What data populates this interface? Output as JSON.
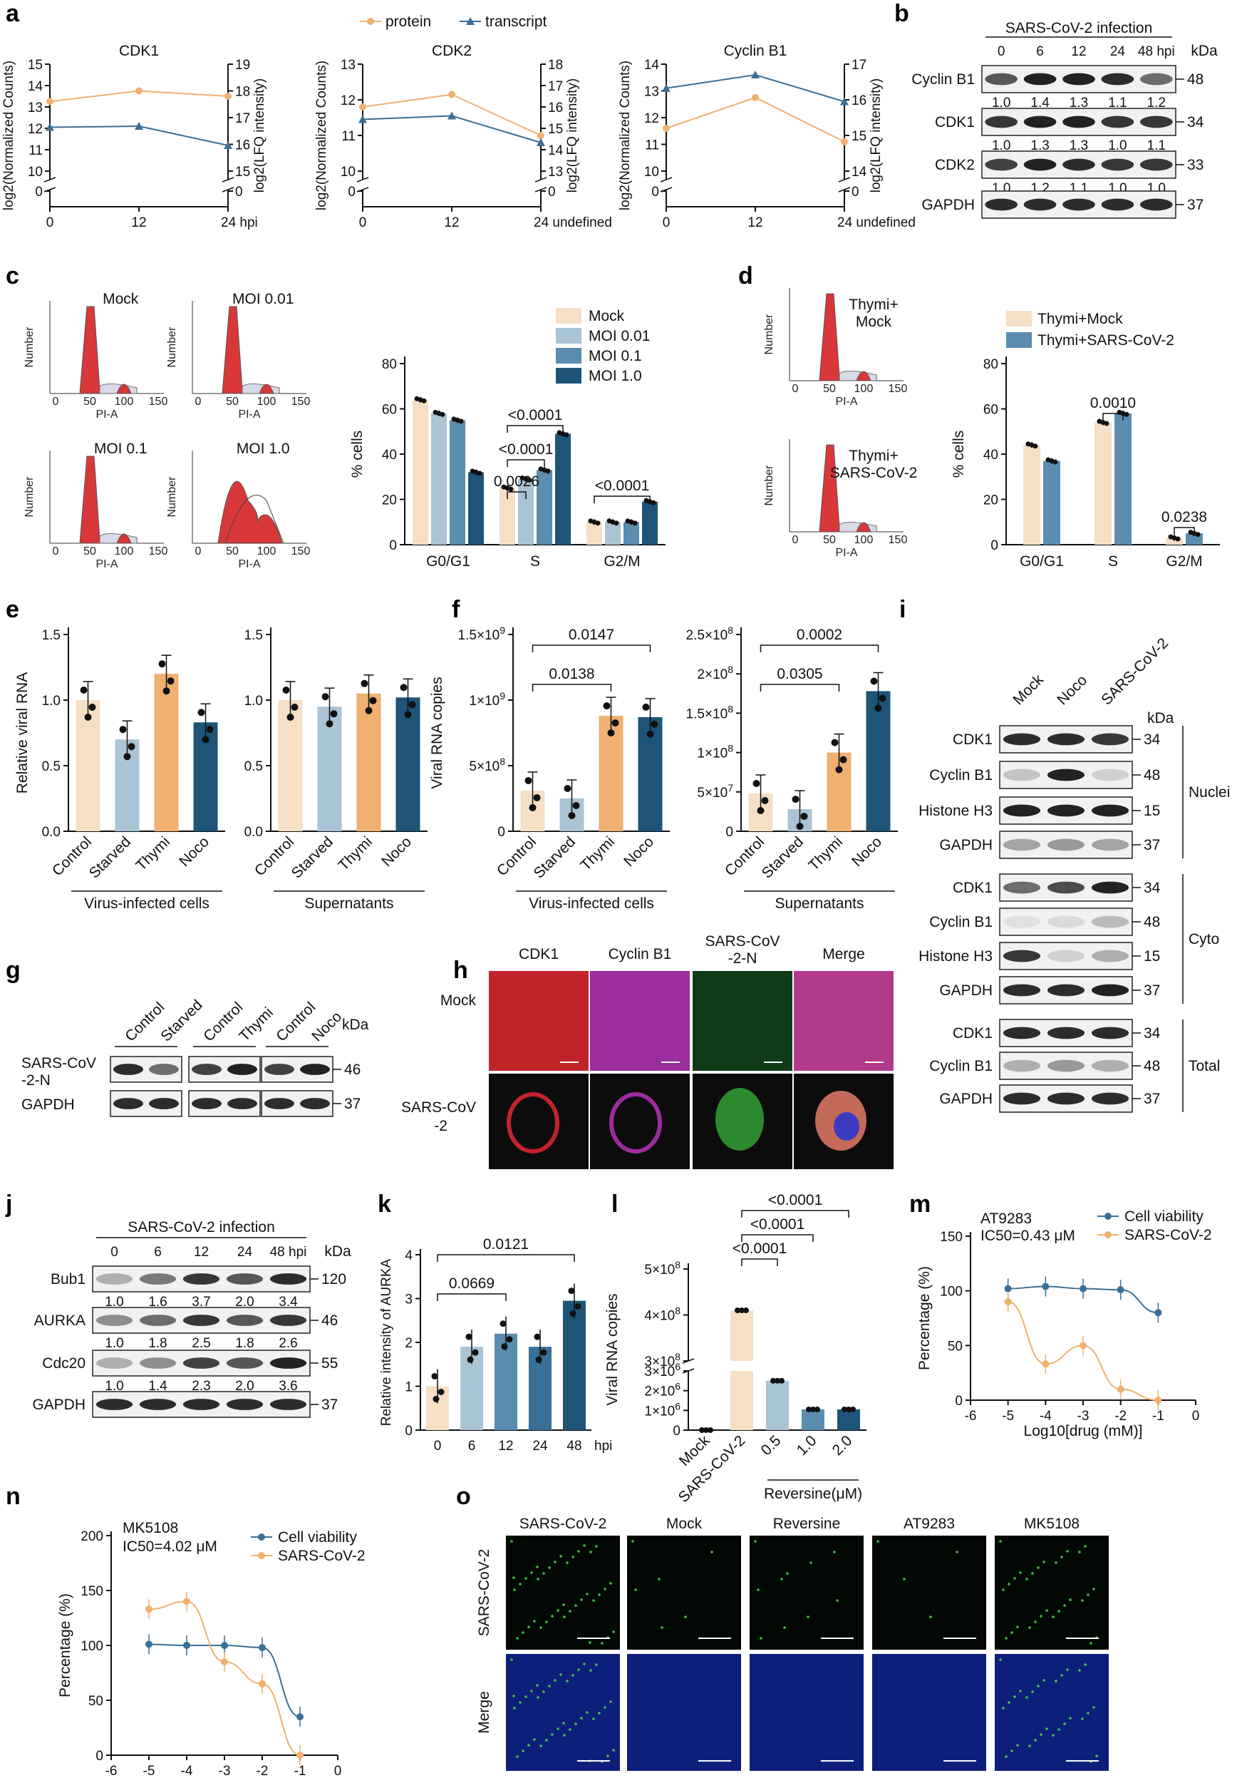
{
  "chart_data": [
    {
      "type": "line",
      "panel": "a",
      "title": "CDK1",
      "x": [
        0,
        12,
        24
      ],
      "xunit": "hpi",
      "ylabel_left": "log2(Normalized Counts)",
      "ylabel_right": "log2(LFQ intensity)",
      "ylim_left": [
        10,
        15
      ],
      "ylim_right": [
        15,
        19
      ],
      "series": [
        {
          "name": "protein",
          "color": "#efb071",
          "values": [
            13.25,
            13.75,
            13.5
          ]
        },
        {
          "name": "transcript",
          "color": "#3a6f96",
          "values": [
            12.05,
            12.1,
            11.2
          ]
        }
      ]
    },
    {
      "type": "line",
      "panel": "a",
      "title": "CDK2",
      "x": [
        0,
        12,
        24
      ],
      "ylabel_left": "log2(Normalized Counts)",
      "ylabel_right": "log2(LFQ intensity)",
      "ylim_left": [
        10,
        13
      ],
      "ylim_right": [
        13,
        18
      ],
      "series": [
        {
          "name": "protein",
          "color": "#efb071",
          "values": [
            11.8,
            12.15,
            11.0
          ]
        },
        {
          "name": "transcript",
          "color": "#3a6f96",
          "values": [
            11.45,
            11.55,
            10.8
          ]
        }
      ]
    },
    {
      "type": "line",
      "panel": "a",
      "title": "Cyclin B1",
      "x": [
        0,
        12,
        24
      ],
      "ylabel_left": "log2(Normalized Counts)",
      "ylabel_right": "log2(LFQ intensity)",
      "ylim_left": [
        10,
        14
      ],
      "ylim_right": [
        14,
        17
      ],
      "series": [
        {
          "name": "protein",
          "color": "#efb071",
          "values": [
            11.6,
            12.75,
            11.1
          ]
        },
        {
          "name": "transcript",
          "color": "#3a6f96",
          "values": [
            13.1,
            13.6,
            12.6
          ]
        }
      ]
    },
    {
      "type": "bar",
      "panel": "c",
      "ylabel": "% cells",
      "ylim": [
        0,
        80
      ],
      "categories": [
        "G0/G1",
        "S",
        "G2/M"
      ],
      "series": [
        {
          "name": "Mock",
          "values": [
            64,
            25,
            10
          ]
        },
        {
          "name": "MOI 0.01",
          "values": [
            58,
            29,
            10
          ]
        },
        {
          "name": "MOI 0.1",
          "values": [
            55,
            33,
            10
          ]
        },
        {
          "name": "MOI 1.0",
          "values": [
            32,
            49,
            19
          ]
        }
      ],
      "annotations": [
        "0.0026",
        "<0.0001",
        "<0.0001",
        "<0.0001"
      ]
    },
    {
      "type": "bar",
      "panel": "d",
      "ylabel": "% cells",
      "ylim": [
        0,
        80
      ],
      "categories": [
        "G0/G1",
        "S",
        "G2/M"
      ],
      "series": [
        {
          "name": "Thymi+Mock",
          "values": [
            44,
            54,
            3
          ]
        },
        {
          "name": "Thymi+SARS-CoV-2",
          "values": [
            37,
            58,
            5
          ]
        }
      ],
      "annotations": [
        "0.0010",
        "0.0238"
      ]
    },
    {
      "type": "bar",
      "panel": "e",
      "ylabel": "Relative viral RNA",
      "ylim": [
        0,
        1.5
      ],
      "xlabel": "Virus-infected cells",
      "categories": [
        "Control",
        "Starved",
        "Thymi",
        "Noco"
      ],
      "values": [
        1.0,
        0.7,
        1.2,
        0.83
      ]
    },
    {
      "type": "bar",
      "panel": "e",
      "ylim": [
        0,
        1.5
      ],
      "xlabel": "Supernatants",
      "categories": [
        "Control",
        "Starved",
        "Thymi",
        "Noco"
      ],
      "values": [
        1.0,
        0.95,
        1.05,
        1.02
      ]
    },
    {
      "type": "bar",
      "panel": "f",
      "ylabel": "Viral RNA copies",
      "ylim": [
        0,
        1500000000
      ],
      "xlabel": "Virus-infected cells",
      "categories": [
        "Control",
        "Starved",
        "Thymi",
        "Noco"
      ],
      "values": [
        310000000,
        250000000,
        880000000,
        870000000
      ],
      "annotations": [
        "0.0138",
        "0.0147"
      ]
    },
    {
      "type": "bar",
      "panel": "f",
      "ylim": [
        0,
        250000000
      ],
      "xlabel": "Supernatants",
      "categories": [
        "Control",
        "Starved",
        "Thymi",
        "Noco"
      ],
      "values": [
        48000000,
        28000000,
        100000000,
        178000000
      ],
      "annotations": [
        "0.0305",
        "0.0002"
      ]
    },
    {
      "type": "bar",
      "panel": "k",
      "ylabel": "Relative intensity of AURKA",
      "ylim": [
        0,
        4
      ],
      "categories": [
        "0",
        "6",
        "12",
        "24",
        "48"
      ],
      "xunit": "hpi",
      "values": [
        1.0,
        1.9,
        2.2,
        1.9,
        2.95
      ],
      "annotations": [
        "0.0669",
        "0.0121"
      ]
    },
    {
      "type": "bar",
      "panel": "l",
      "ylabel": "Viral RNA copies",
      "categories": [
        "Mock",
        "SARS-CoV-2",
        "0.5",
        "1.0",
        "2.0"
      ],
      "group_label": "Reversine(μM)",
      "values": [
        0,
        410000000,
        2500000,
        1050000,
        1050000
      ],
      "annotations": [
        "<0.0001",
        "<0.0001",
        "<0.0001"
      ]
    },
    {
      "type": "line",
      "panel": "m",
      "title": "AT9283",
      "annotation": "IC50=0.43 μM",
      "xlabel": "Log10[drug (mM)]",
      "ylabel": "Percentage (%)",
      "xlim": [
        -6,
        0
      ],
      "ylim": [
        0,
        150
      ],
      "series": [
        {
          "name": "Cell viability",
          "color": "#3a6f96",
          "x": [
            -5,
            -4,
            -3,
            -2,
            -1
          ],
          "values": [
            102,
            104,
            102,
            101,
            80
          ]
        },
        {
          "name": "SARS-CoV-2",
          "color": "#efb071",
          "x": [
            -5,
            -4,
            -3,
            -2,
            -1
          ],
          "values": [
            90,
            33,
            50,
            10,
            0
          ]
        }
      ]
    },
    {
      "type": "line",
      "panel": "n",
      "title": "MK5108",
      "annotation": "IC50=4.02 μM",
      "xlabel": "Log10[drug (mM)]",
      "ylabel": "Percentage (%)",
      "xlim": [
        -6,
        0
      ],
      "ylim": [
        0,
        200
      ],
      "series": [
        {
          "name": "Cell viability",
          "color": "#3a6f96",
          "x": [
            -5,
            -4,
            -3,
            -2,
            -1
          ],
          "values": [
            101,
            100,
            100,
            98,
            35
          ]
        },
        {
          "name": "SARS-CoV-2",
          "color": "#efb071",
          "x": [
            -5,
            -4,
            -3,
            -2,
            -1
          ],
          "values": [
            133,
            140,
            85,
            65,
            0
          ]
        }
      ]
    }
  ],
  "panels": {
    "a": "a",
    "b": "b",
    "c": "c",
    "d": "d",
    "e": "e",
    "f": "f",
    "g": "g",
    "h": "h",
    "i": "i",
    "j": "j",
    "k": "k",
    "l": "l",
    "m": "m",
    "n": "n",
    "o": "o"
  },
  "legend_a": {
    "protein": "protein",
    "transcript": "transcript"
  },
  "blots": {
    "b": {
      "header": "SARS-CoV-2 infection",
      "kda": "kDa",
      "lanes": [
        "0",
        "6",
        "12",
        "24",
        "48 hpi"
      ],
      "rows": [
        {
          "label": "Cyclin B1",
          "kda": "48",
          "quant": [
            "1.0",
            "1.4",
            "1.3",
            "1.1",
            "1.2"
          ]
        },
        {
          "label": "CDK1",
          "kda": "34",
          "quant": [
            "1.0",
            "1.3",
            "1.3",
            "1.0",
            "1.1"
          ]
        },
        {
          "label": "CDK2",
          "kda": "33",
          "quant": [
            "1.0",
            "1.2",
            "1.1",
            "1.0",
            "1.0"
          ]
        },
        {
          "label": "GAPDH",
          "kda": "37",
          "quant": []
        }
      ]
    },
    "g": {
      "lanes": [
        "Control",
        "Starved",
        "Control",
        "Thymi",
        "Control",
        "Noco"
      ],
      "kda": "kDa",
      "rows": [
        {
          "label": "SARS-CoV-2-N",
          "kda": "46"
        },
        {
          "label": "GAPDH",
          "kda": "37"
        }
      ]
    },
    "i": {
      "lanes": [
        "Mock",
        "Noco",
        "SARS-CoV-2"
      ],
      "kda": "kDa",
      "groups": [
        {
          "name": "Nuclei",
          "rows": [
            {
              "label": "CDK1",
              "kda": "34"
            },
            {
              "label": "Cyclin B1",
              "kda": "48"
            },
            {
              "label": "Histone H3",
              "kda": "15"
            },
            {
              "label": "GAPDH",
              "kda": "37"
            }
          ]
        },
        {
          "name": "Cyto",
          "rows": [
            {
              "label": "CDK1",
              "kda": "34"
            },
            {
              "label": "Cyclin B1",
              "kda": "48"
            },
            {
              "label": "Histone H3",
              "kda": "15"
            },
            {
              "label": "GAPDH",
              "kda": "37"
            }
          ]
        },
        {
          "name": "Total",
          "rows": [
            {
              "label": "CDK1",
              "kda": "34"
            },
            {
              "label": "Cyclin B1",
              "kda": "48"
            },
            {
              "label": "GAPDH",
              "kda": "37"
            }
          ]
        }
      ]
    },
    "j": {
      "header": "SARS-CoV-2 infection",
      "kda": "kDa",
      "lanes": [
        "0",
        "6",
        "12",
        "24",
        "48 hpi"
      ],
      "rows": [
        {
          "label": "Bub1",
          "kda": "120",
          "quant": [
            "1.0",
            "1.6",
            "3.7",
            "2.0",
            "3.4"
          ]
        },
        {
          "label": "AURKA",
          "kda": "46",
          "quant": [
            "1.0",
            "1.8",
            "2.5",
            "1.8",
            "2.6"
          ]
        },
        {
          "label": "Cdc20",
          "kda": "55",
          "quant": [
            "1.0",
            "1.4",
            "2.3",
            "2.0",
            "3.6"
          ]
        },
        {
          "label": "GAPDH",
          "kda": "37",
          "quant": []
        }
      ]
    }
  },
  "flow": {
    "c": [
      "Mock",
      "MOI 0.01",
      "MOI 0.1",
      "MOI 1.0"
    ],
    "d": [
      "Thymi+ Mock",
      "Thymi+ SARS-CoV-2"
    ],
    "axis_y": "Number",
    "axis_x": "PI-A"
  },
  "microscopy_h": {
    "columns": [
      "CDK1",
      "Cyclin B1",
      "SARS-CoV-2-N",
      "Merge"
    ],
    "rows": [
      "Mock",
      "SARS-CoV-2"
    ]
  },
  "microscopy_o": {
    "columns": [
      "SARS-CoV-2",
      "Mock",
      "Reversine",
      "AT9283",
      "MK5108"
    ],
    "rows": [
      "SARS-CoV-2",
      "Merge"
    ]
  }
}
